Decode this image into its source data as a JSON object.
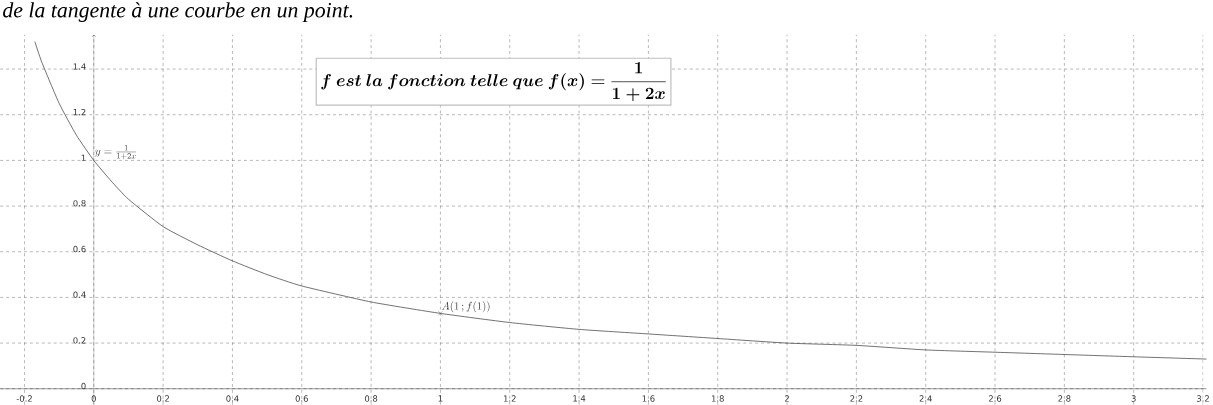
{
  "chart_data": {
    "type": "line",
    "title": "de la tangente à une courbe en un point.",
    "xlim": [
      -0.27,
      3.21
    ],
    "ylim": [
      -0.07,
      1.55
    ],
    "xticks": [
      -0.2,
      0,
      0.2,
      0.4,
      0.6,
      0.8,
      1,
      1.2,
      1.4,
      1.6,
      1.8,
      2,
      2.2,
      2.4,
      2.6,
      2.8,
      3,
      3.2
    ],
    "yticks": [
      0,
      0.2,
      0.4,
      0.6,
      0.8,
      1,
      1.2,
      1.4
    ],
    "grid": true,
    "series": [
      {
        "color": "#333333",
        "line_style": "solid",
        "x": [
          -0.17,
          -0.15,
          -0.1,
          -0.05,
          0,
          0.05,
          0.1,
          0.2,
          0.3,
          0.4,
          0.5,
          0.6,
          0.8,
          1,
          1.2,
          1.4,
          1.6,
          1.8,
          2,
          2.2,
          2.4,
          2.6,
          2.8,
          3,
          3.21
        ],
        "values": [
          1.52,
          1.43,
          1.25,
          1.11,
          1,
          0.91,
          0.83,
          0.71,
          0.63,
          0.56,
          0.5,
          0.45,
          0.38,
          0.33,
          0.29,
          0.26,
          0.24,
          0.22,
          0.2,
          0.19,
          0.17,
          0.16,
          0.15,
          0.14,
          0.13
        ]
      },
      {
        "type": "scatter",
        "color": "#555555",
        "marker": "cross",
        "x": [
          1
        ],
        "values": [
          0.33
        ]
      }
    ],
    "annotations": [
      {
        "text": "y=\\frac{1}{1+2x}",
        "x": 0,
        "y": 1
      },
      {
        "text": "A(1\\,;f(1))",
        "x": 1,
        "y": 0.33
      },
      "\\boldsymbol{f\\ est\\ la\\ fonction\\ telle\\ que\\ f(x)=\\dfrac{1}{1+2x}}"
    ]
  }
}
